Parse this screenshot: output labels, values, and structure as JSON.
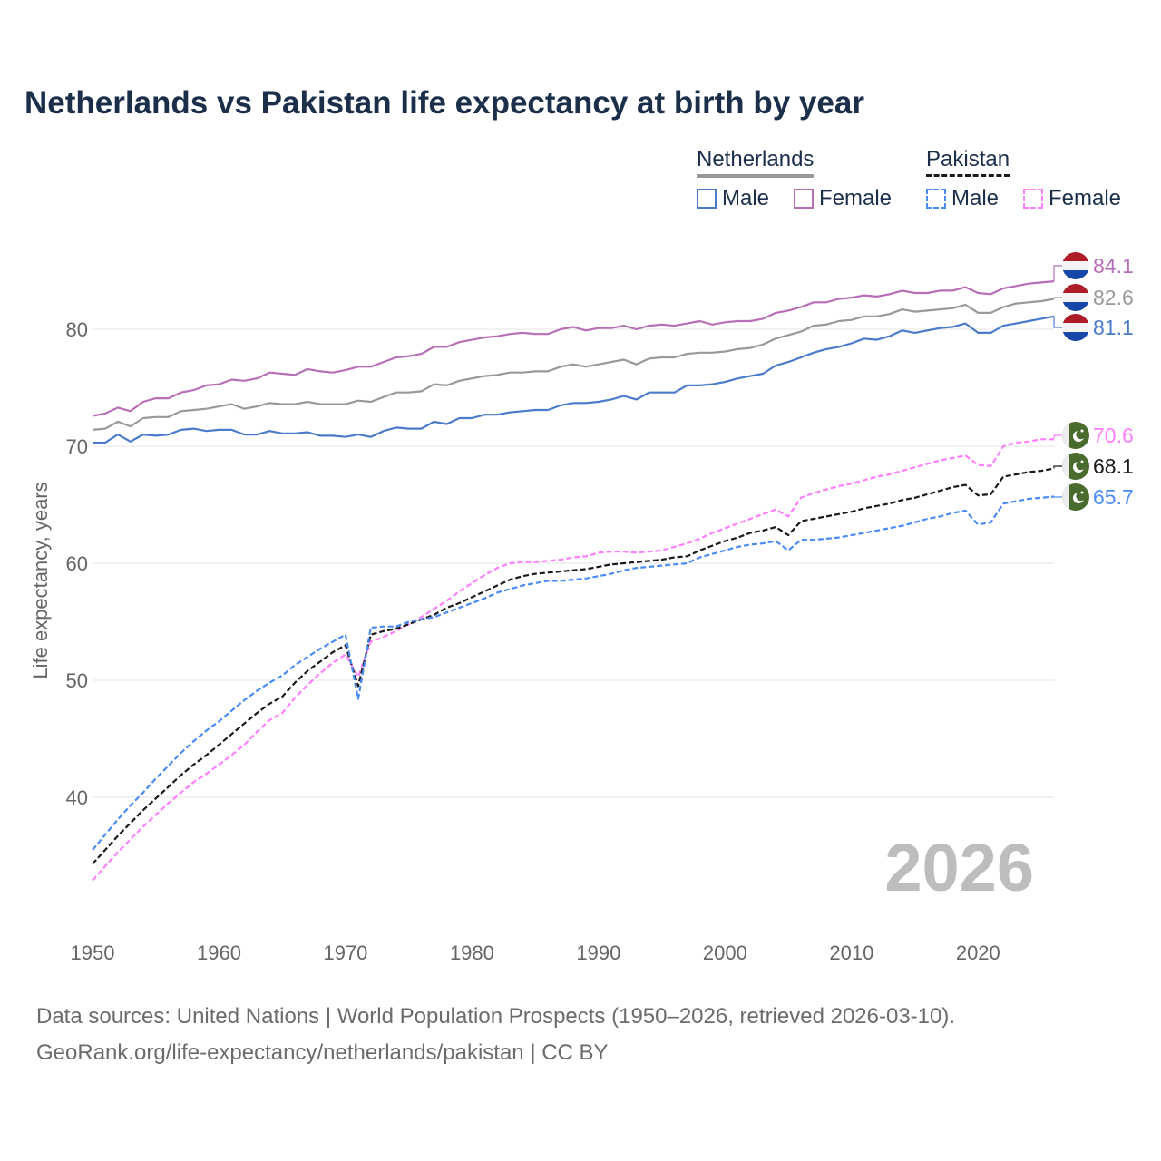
{
  "title": "Netherlands vs Pakistan life expectancy at birth by year",
  "legend": {
    "groups": [
      {
        "name": "Netherlands",
        "items": [
          "Male",
          "Female"
        ]
      },
      {
        "name": "Pakistan",
        "items": [
          "Male",
          "Female"
        ]
      }
    ]
  },
  "year_watermark": "2026",
  "footer": {
    "line1": "Data sources: United Nations | World Population Prospects (1950–2026, retrieved 2026-03-10).",
    "line2": "GeoRank.org/life-expectancy/netherlands/pakistan | CC BY"
  },
  "chart_data": {
    "type": "line",
    "title": "Netherlands vs Pakistan life expectancy at birth by year",
    "xlabel": "",
    "ylabel": "Life expectancy, years",
    "x_start": 1950,
    "x_end": 2026,
    "xlim": [
      1950,
      2026
    ],
    "ylim": [
      30,
      87
    ],
    "x_ticks": [
      1950,
      1960,
      1970,
      1980,
      1990,
      2000,
      2010,
      2020
    ],
    "y_ticks": [
      40,
      50,
      60,
      70,
      80
    ],
    "grid": true,
    "legend_position": "top-right",
    "series": [
      {
        "name": "Netherlands Female",
        "color": "#b86fb8",
        "dash": false,
        "end_label": "84.1",
        "flag": "netherlands",
        "values": [
          72.6,
          72.8,
          73.3,
          73.0,
          73.8,
          74.1,
          74.1,
          74.6,
          74.8,
          75.2,
          75.3,
          75.7,
          75.6,
          75.8,
          76.3,
          76.2,
          76.1,
          76.6,
          76.4,
          76.3,
          76.5,
          76.8,
          76.8,
          77.2,
          77.6,
          77.7,
          77.9,
          78.5,
          78.5,
          78.9,
          79.1,
          79.3,
          79.4,
          79.6,
          79.7,
          79.6,
          79.6,
          80.0,
          80.2,
          79.9,
          80.1,
          80.1,
          80.3,
          80.0,
          80.3,
          80.4,
          80.3,
          80.5,
          80.7,
          80.4,
          80.6,
          80.7,
          80.7,
          80.9,
          81.4,
          81.6,
          81.9,
          82.3,
          82.3,
          82.6,
          82.7,
          82.9,
          82.8,
          83.0,
          83.3,
          83.1,
          83.1,
          83.3,
          83.3,
          83.6,
          83.1,
          83.0,
          83.5,
          83.7,
          83.9,
          84.0,
          84.1
        ]
      },
      {
        "name": "Netherlands Total",
        "color": "#999999",
        "dash": false,
        "end_label": "82.6",
        "flag": "netherlands",
        "values": [
          71.4,
          71.5,
          72.1,
          71.7,
          72.4,
          72.5,
          72.5,
          73.0,
          73.1,
          73.2,
          73.4,
          73.6,
          73.2,
          73.4,
          73.7,
          73.6,
          73.6,
          73.8,
          73.6,
          73.6,
          73.6,
          73.9,
          73.8,
          74.2,
          74.6,
          74.6,
          74.7,
          75.3,
          75.2,
          75.6,
          75.8,
          76.0,
          76.1,
          76.3,
          76.3,
          76.4,
          76.4,
          76.8,
          77.0,
          76.8,
          77.0,
          77.2,
          77.4,
          77.0,
          77.5,
          77.6,
          77.6,
          77.9,
          78.0,
          78.0,
          78.1,
          78.3,
          78.4,
          78.7,
          79.2,
          79.5,
          79.8,
          80.3,
          80.4,
          80.7,
          80.8,
          81.1,
          81.1,
          81.3,
          81.7,
          81.5,
          81.6,
          81.7,
          81.8,
          82.1,
          81.4,
          81.4,
          81.9,
          82.2,
          82.3,
          82.4,
          82.6
        ]
      },
      {
        "name": "Netherlands Male",
        "color": "#4a7bcc",
        "dash": false,
        "end_label": "81.1",
        "flag": "netherlands",
        "values": [
          70.3,
          70.3,
          71.0,
          70.4,
          71.0,
          70.9,
          71.0,
          71.4,
          71.5,
          71.3,
          71.4,
          71.4,
          71.0,
          71.0,
          71.3,
          71.1,
          71.1,
          71.2,
          70.9,
          70.9,
          70.8,
          71.0,
          70.8,
          71.3,
          71.6,
          71.5,
          71.5,
          72.1,
          71.9,
          72.4,
          72.4,
          72.7,
          72.7,
          72.9,
          73.0,
          73.1,
          73.1,
          73.5,
          73.7,
          73.7,
          73.8,
          74.0,
          74.3,
          74.0,
          74.6,
          74.6,
          74.6,
          75.2,
          75.2,
          75.3,
          75.5,
          75.8,
          76.0,
          76.2,
          76.9,
          77.2,
          77.6,
          78.0,
          78.3,
          78.5,
          78.8,
          79.2,
          79.1,
          79.4,
          79.9,
          79.7,
          79.9,
          80.1,
          80.2,
          80.5,
          79.7,
          79.7,
          80.3,
          80.5,
          80.7,
          80.9,
          81.1
        ]
      },
      {
        "name": "Pakistan Female",
        "color": "#ff80ff",
        "dash": true,
        "end_label": "70.6",
        "flag": "pakistan",
        "values": [
          32.9,
          34.1,
          35.3,
          36.4,
          37.5,
          38.5,
          39.5,
          40.4,
          41.3,
          42.0,
          42.8,
          43.6,
          44.5,
          45.6,
          46.6,
          47.2,
          48.5,
          49.6,
          50.6,
          51.5,
          52.2,
          50.3,
          53.3,
          53.7,
          54.2,
          54.8,
          55.4,
          56.1,
          56.8,
          57.6,
          58.3,
          59.0,
          59.6,
          60.0,
          60.1,
          60.1,
          60.2,
          60.3,
          60.5,
          60.6,
          60.9,
          61.0,
          61.0,
          60.9,
          61.0,
          61.1,
          61.4,
          61.7,
          62.1,
          62.6,
          63.0,
          63.4,
          63.8,
          64.2,
          64.6,
          64.0,
          65.6,
          66.0,
          66.3,
          66.6,
          66.8,
          67.1,
          67.4,
          67.6,
          67.9,
          68.2,
          68.5,
          68.8,
          69.0,
          69.2,
          68.4,
          68.3,
          70.0,
          70.3,
          70.4,
          70.6,
          70.6
        ]
      },
      {
        "name": "Pakistan Total",
        "color": "#1a1a1a",
        "dash": true,
        "end_label": "68.1",
        "flag": "pakistan",
        "values": [
          34.3,
          35.5,
          36.7,
          37.8,
          38.9,
          39.9,
          40.9,
          41.9,
          42.8,
          43.6,
          44.5,
          45.4,
          46.3,
          47.2,
          48.0,
          48.6,
          49.8,
          50.8,
          51.6,
          52.4,
          53.0,
          49.5,
          53.9,
          54.2,
          54.4,
          54.8,
          55.2,
          55.6,
          56.2,
          56.6,
          57.1,
          57.6,
          58.1,
          58.6,
          58.9,
          59.1,
          59.2,
          59.3,
          59.4,
          59.5,
          59.7,
          59.9,
          60.0,
          60.1,
          60.2,
          60.3,
          60.5,
          60.6,
          61.1,
          61.5,
          61.9,
          62.2,
          62.6,
          62.8,
          63.1,
          62.4,
          63.6,
          63.8,
          64.0,
          64.2,
          64.4,
          64.7,
          64.9,
          65.1,
          65.4,
          65.6,
          65.9,
          66.2,
          66.5,
          66.7,
          65.8,
          65.9,
          67.4,
          67.6,
          67.8,
          67.9,
          68.1
        ]
      },
      {
        "name": "Pakistan Male",
        "color": "#4a8cf5",
        "dash": true,
        "end_label": "65.7",
        "flag": "pakistan",
        "values": [
          35.5,
          36.8,
          38.1,
          39.3,
          40.4,
          41.6,
          42.7,
          43.8,
          44.8,
          45.7,
          46.5,
          47.4,
          48.3,
          49.1,
          49.8,
          50.4,
          51.3,
          52.0,
          52.7,
          53.3,
          53.9,
          48.4,
          54.5,
          54.6,
          54.6,
          55.0,
          55.2,
          55.4,
          55.8,
          56.2,
          56.6,
          57.0,
          57.5,
          57.8,
          58.1,
          58.3,
          58.5,
          58.5,
          58.6,
          58.7,
          58.9,
          59.1,
          59.4,
          59.6,
          59.7,
          59.8,
          59.9,
          60.0,
          60.5,
          60.8,
          61.1,
          61.4,
          61.6,
          61.7,
          61.9,
          61.1,
          62.0,
          62.0,
          62.1,
          62.2,
          62.4,
          62.6,
          62.8,
          63.0,
          63.2,
          63.5,
          63.8,
          64.0,
          64.3,
          64.5,
          63.3,
          63.5,
          65.1,
          65.3,
          65.5,
          65.6,
          65.7
        ]
      }
    ]
  }
}
